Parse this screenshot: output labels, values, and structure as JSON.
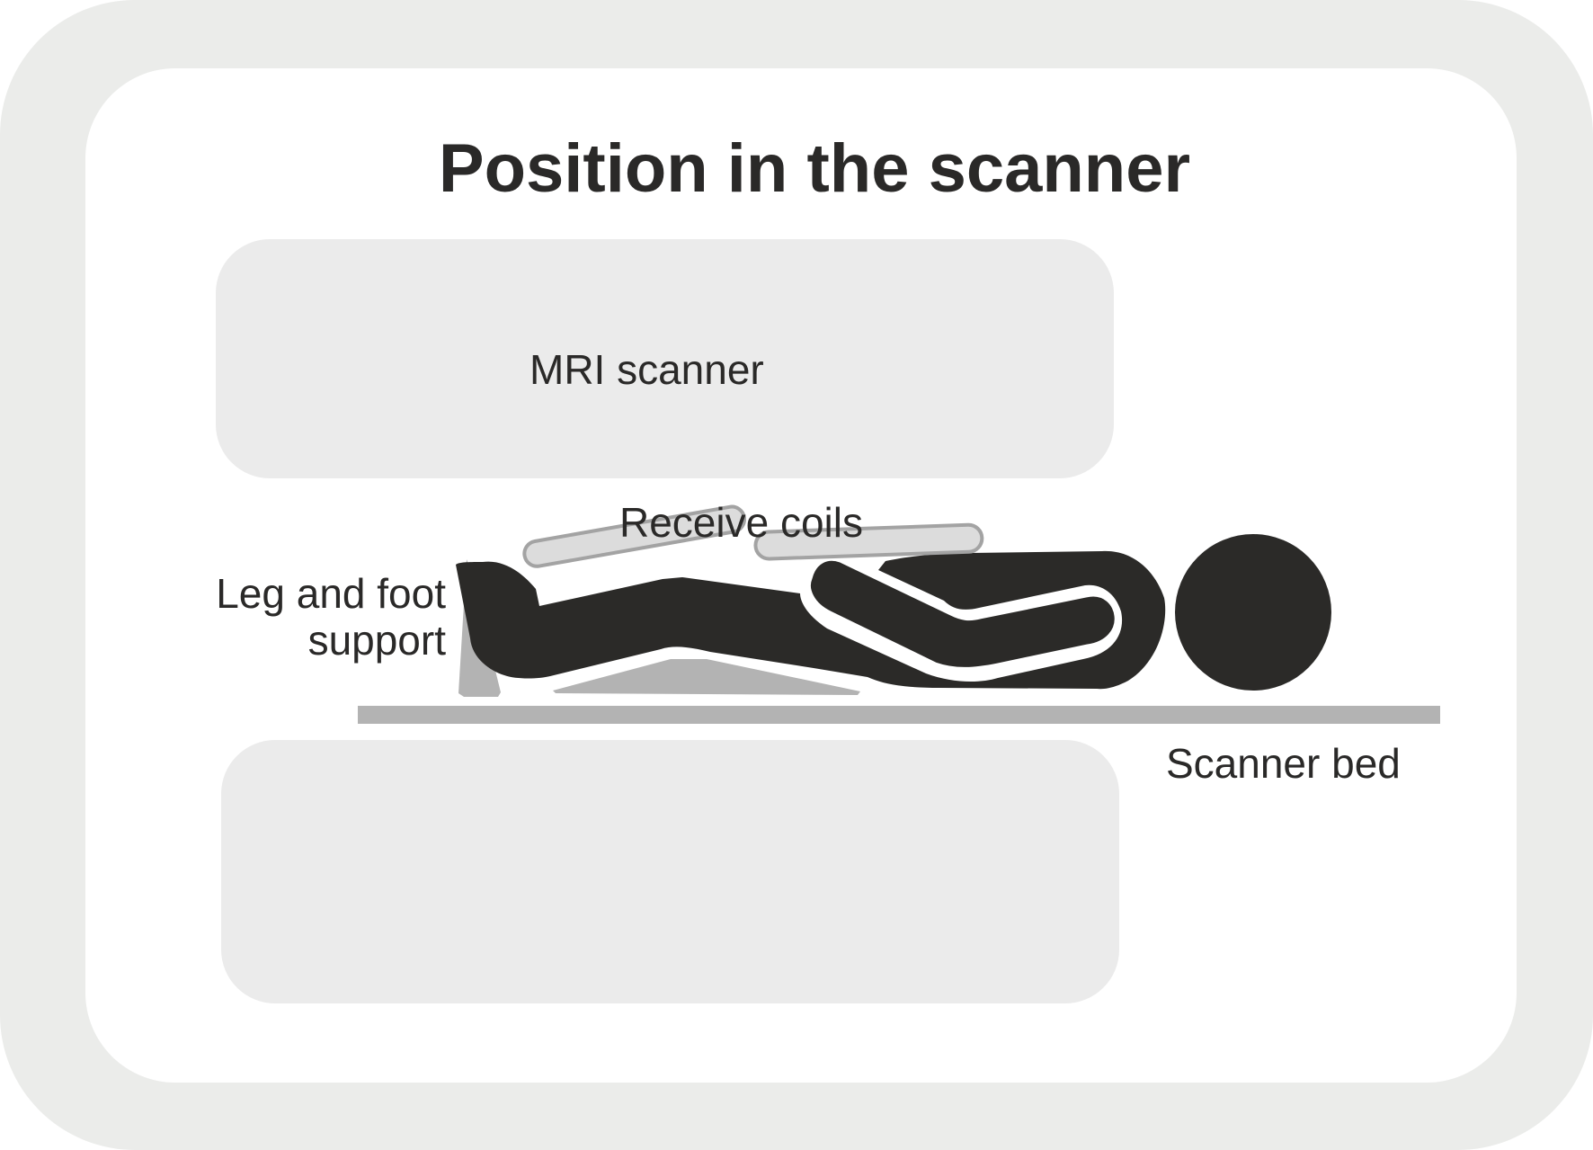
{
  "title": "Position in the scanner",
  "labels": {
    "mri_scanner": "MRI scanner",
    "receive_coils": "Receive coils",
    "leg_support_line1": "Leg and foot",
    "leg_support_line2": "support",
    "scanner_bed": "Scanner bed"
  },
  "colors": {
    "frame": "#ebecea",
    "panel": "#ebebeb",
    "body": "#2b2a28",
    "support": "#b3b3b3",
    "coil_fill": "#dcdcdc",
    "coil_stroke": "#a3a3a3",
    "text": "#2a2928"
  }
}
